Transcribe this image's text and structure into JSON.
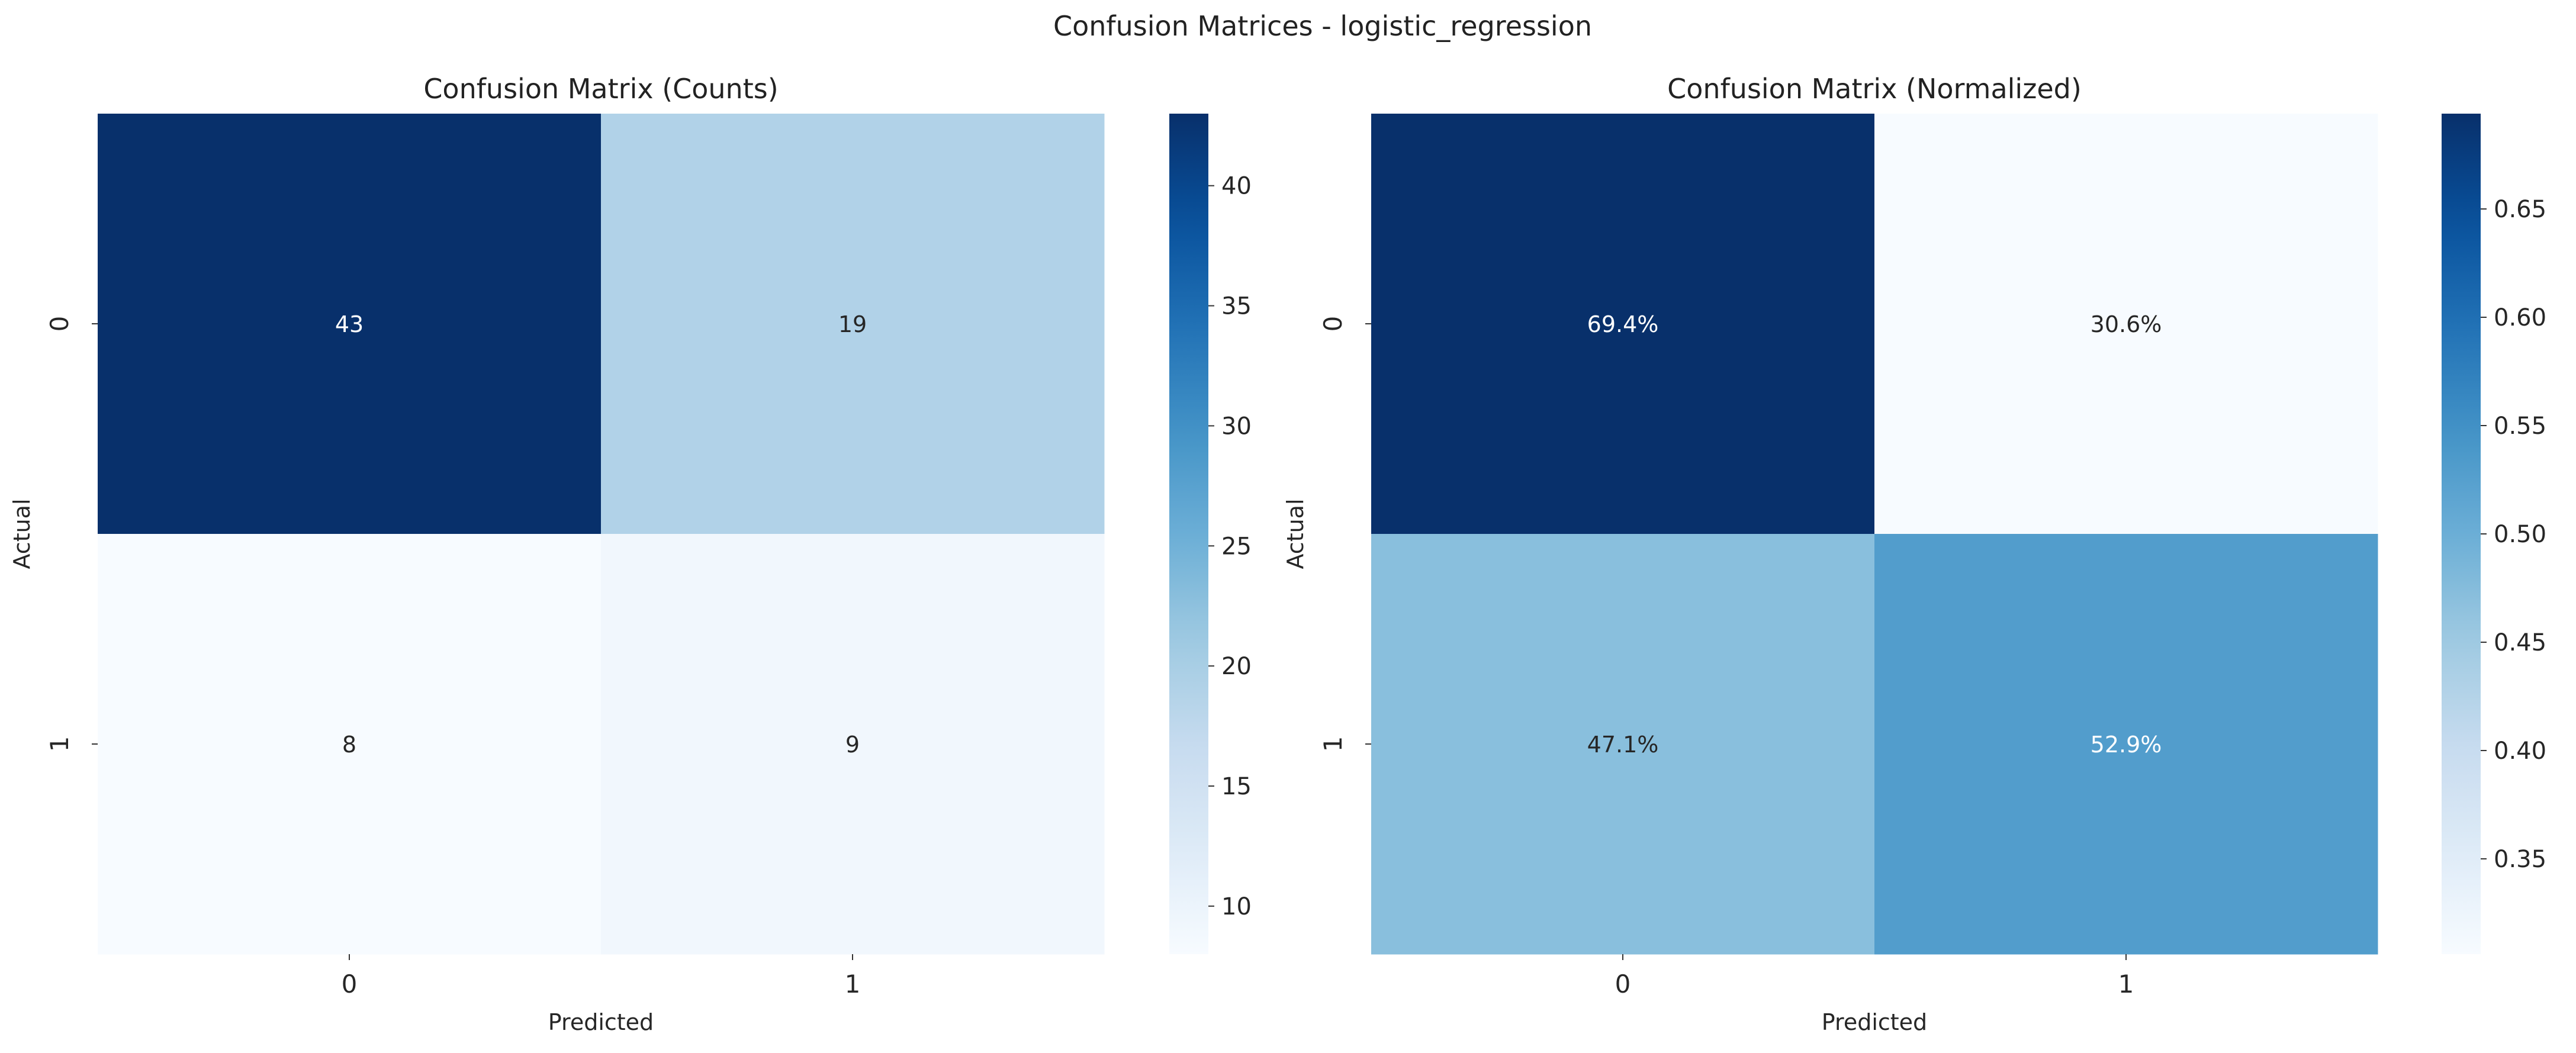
{
  "figure": {
    "suptitle": "Confusion Matrices - logistic_regression"
  },
  "chart_data": [
    {
      "type": "heatmap",
      "title": "Confusion Matrix (Counts)",
      "xlabel": "Predicted",
      "ylabel": "Actual",
      "x_categories": [
        "0",
        "1"
      ],
      "y_categories": [
        "0",
        "1"
      ],
      "values": [
        [
          43,
          19
        ],
        [
          8,
          9
        ]
      ],
      "cell_labels": [
        [
          "43",
          "19"
        ],
        [
          "8",
          "9"
        ]
      ],
      "colormap": "Blues",
      "vmin": 8,
      "vmax": 43,
      "colorbar_ticks": [
        10,
        15,
        20,
        25,
        30,
        35,
        40
      ],
      "colorbar_tick_labels": [
        "10",
        "15",
        "20",
        "25",
        "30",
        "35",
        "40"
      ]
    },
    {
      "type": "heatmap",
      "title": "Confusion Matrix (Normalized)",
      "xlabel": "Predicted",
      "ylabel": "Actual",
      "x_categories": [
        "0",
        "1"
      ],
      "y_categories": [
        "0",
        "1"
      ],
      "values": [
        [
          0.694,
          0.306
        ],
        [
          0.471,
          0.529
        ]
      ],
      "cell_labels": [
        [
          "69.4%",
          "30.6%"
        ],
        [
          "47.1%",
          "52.9%"
        ]
      ],
      "colormap": "Blues",
      "vmin": 0.306,
      "vmax": 0.694,
      "colorbar_ticks": [
        0.35,
        0.4,
        0.45,
        0.5,
        0.55,
        0.6,
        0.65
      ],
      "colorbar_tick_labels": [
        "0.35",
        "0.40",
        "0.45",
        "0.50",
        "0.55",
        "0.60",
        "0.65"
      ]
    }
  ]
}
